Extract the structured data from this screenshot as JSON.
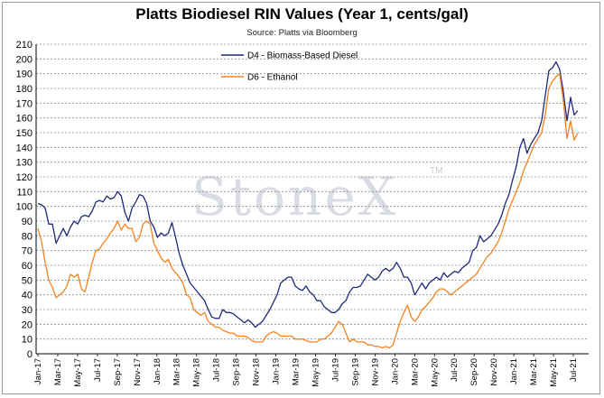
{
  "chart_data": {
    "type": "line",
    "title": "Platts Biodiesel RIN Values (Year 1, cents/gal)",
    "subtitle": "Source: Platts via Bloomberg",
    "watermark": "StoneX",
    "watermark_tm": "TM",
    "xlabel": "",
    "ylabel": "",
    "ylim": [
      0,
      210
    ],
    "y_ticks": [
      0,
      10,
      20,
      30,
      40,
      50,
      60,
      70,
      80,
      90,
      100,
      110,
      120,
      130,
      140,
      150,
      160,
      170,
      180,
      190,
      200,
      210
    ],
    "x_tick_labels": [
      "Jan-17",
      "Mar-17",
      "May-17",
      "Jul-17",
      "Sep-17",
      "Nov-17",
      "Jan-18",
      "Mar-18",
      "May-18",
      "Jul-18",
      "Sep-18",
      "Nov-18",
      "Jan-19",
      "Mar-19",
      "May-19",
      "Jul-19",
      "Sep-19",
      "Nov-19",
      "Jan-20",
      "Mar-20",
      "May-20",
      "Jul-20",
      "Sep-20",
      "Nov-20",
      "Jan-21",
      "Mar-21",
      "May-21",
      "Jul-21"
    ],
    "grid": true,
    "legend_position": "top",
    "series": [
      {
        "name": "D4 - Biomass-Based Diesel",
        "color": "#1f2a7c",
        "values": [
          102,
          101,
          99,
          88,
          88,
          75,
          80,
          85,
          80,
          86,
          90,
          88,
          93,
          94,
          93,
          97,
          103,
          104,
          103,
          107,
          105,
          106,
          110,
          107,
          96,
          90,
          99,
          103,
          108,
          107,
          102,
          90,
          86,
          79,
          82,
          80,
          82,
          89,
          79,
          68,
          60,
          54,
          48,
          45,
          42,
          39,
          36,
          30,
          25,
          24,
          24,
          30,
          28,
          28,
          27,
          25,
          23,
          21,
          23,
          21,
          18,
          20,
          22,
          26,
          30,
          35,
          40,
          48,
          50,
          52,
          52,
          46,
          44,
          43,
          46,
          42,
          40,
          36,
          36,
          32,
          30,
          28,
          28,
          30,
          34,
          36,
          42,
          45,
          45,
          46,
          50,
          54,
          52,
          50,
          52,
          56,
          58,
          56,
          58,
          62,
          58,
          52,
          52,
          48,
          40,
          44,
          48,
          44,
          48,
          50,
          52,
          50,
          55,
          52,
          54,
          56,
          55,
          58,
          60,
          62,
          70,
          72,
          80,
          76,
          78,
          80,
          84,
          88,
          94,
          102,
          108,
          118,
          127,
          140,
          146,
          136,
          142,
          146,
          150,
          158,
          175,
          192,
          194,
          198,
          193,
          178,
          158,
          174,
          162,
          165
        ]
      },
      {
        "name": "D6 - Ethanol",
        "color": "#f58220",
        "values": [
          85,
          76,
          62,
          50,
          45,
          38,
          40,
          42,
          46,
          54,
          52,
          54,
          44,
          42,
          52,
          62,
          70,
          71,
          75,
          78,
          82,
          85,
          90,
          84,
          88,
          85,
          85,
          76,
          79,
          88,
          90,
          88,
          75,
          70,
          65,
          62,
          64,
          58,
          55,
          52,
          48,
          40,
          38,
          30,
          28,
          26,
          28,
          22,
          20,
          18,
          18,
          16,
          15,
          14,
          14,
          12,
          12,
          12,
          11,
          9,
          8,
          8,
          8,
          12,
          14,
          15,
          14,
          12,
          12,
          12,
          12,
          10,
          10,
          10,
          9,
          8,
          8,
          8,
          10,
          10,
          12,
          14,
          18,
          22,
          20,
          14,
          8,
          10,
          8,
          8,
          8,
          6,
          6,
          5,
          5,
          4,
          5,
          4,
          6,
          14,
          22,
          28,
          33,
          25,
          22,
          25,
          30,
          32,
          35,
          38,
          42,
          44,
          44,
          42,
          40,
          42,
          44,
          46,
          48,
          50,
          52,
          54,
          58,
          62,
          66,
          68,
          72,
          76,
          82,
          90,
          98,
          104,
          110,
          116,
          124,
          130,
          136,
          142,
          146,
          150,
          162,
          180,
          185,
          188,
          190,
          172,
          146,
          158,
          145,
          150
        ]
      }
    ]
  }
}
